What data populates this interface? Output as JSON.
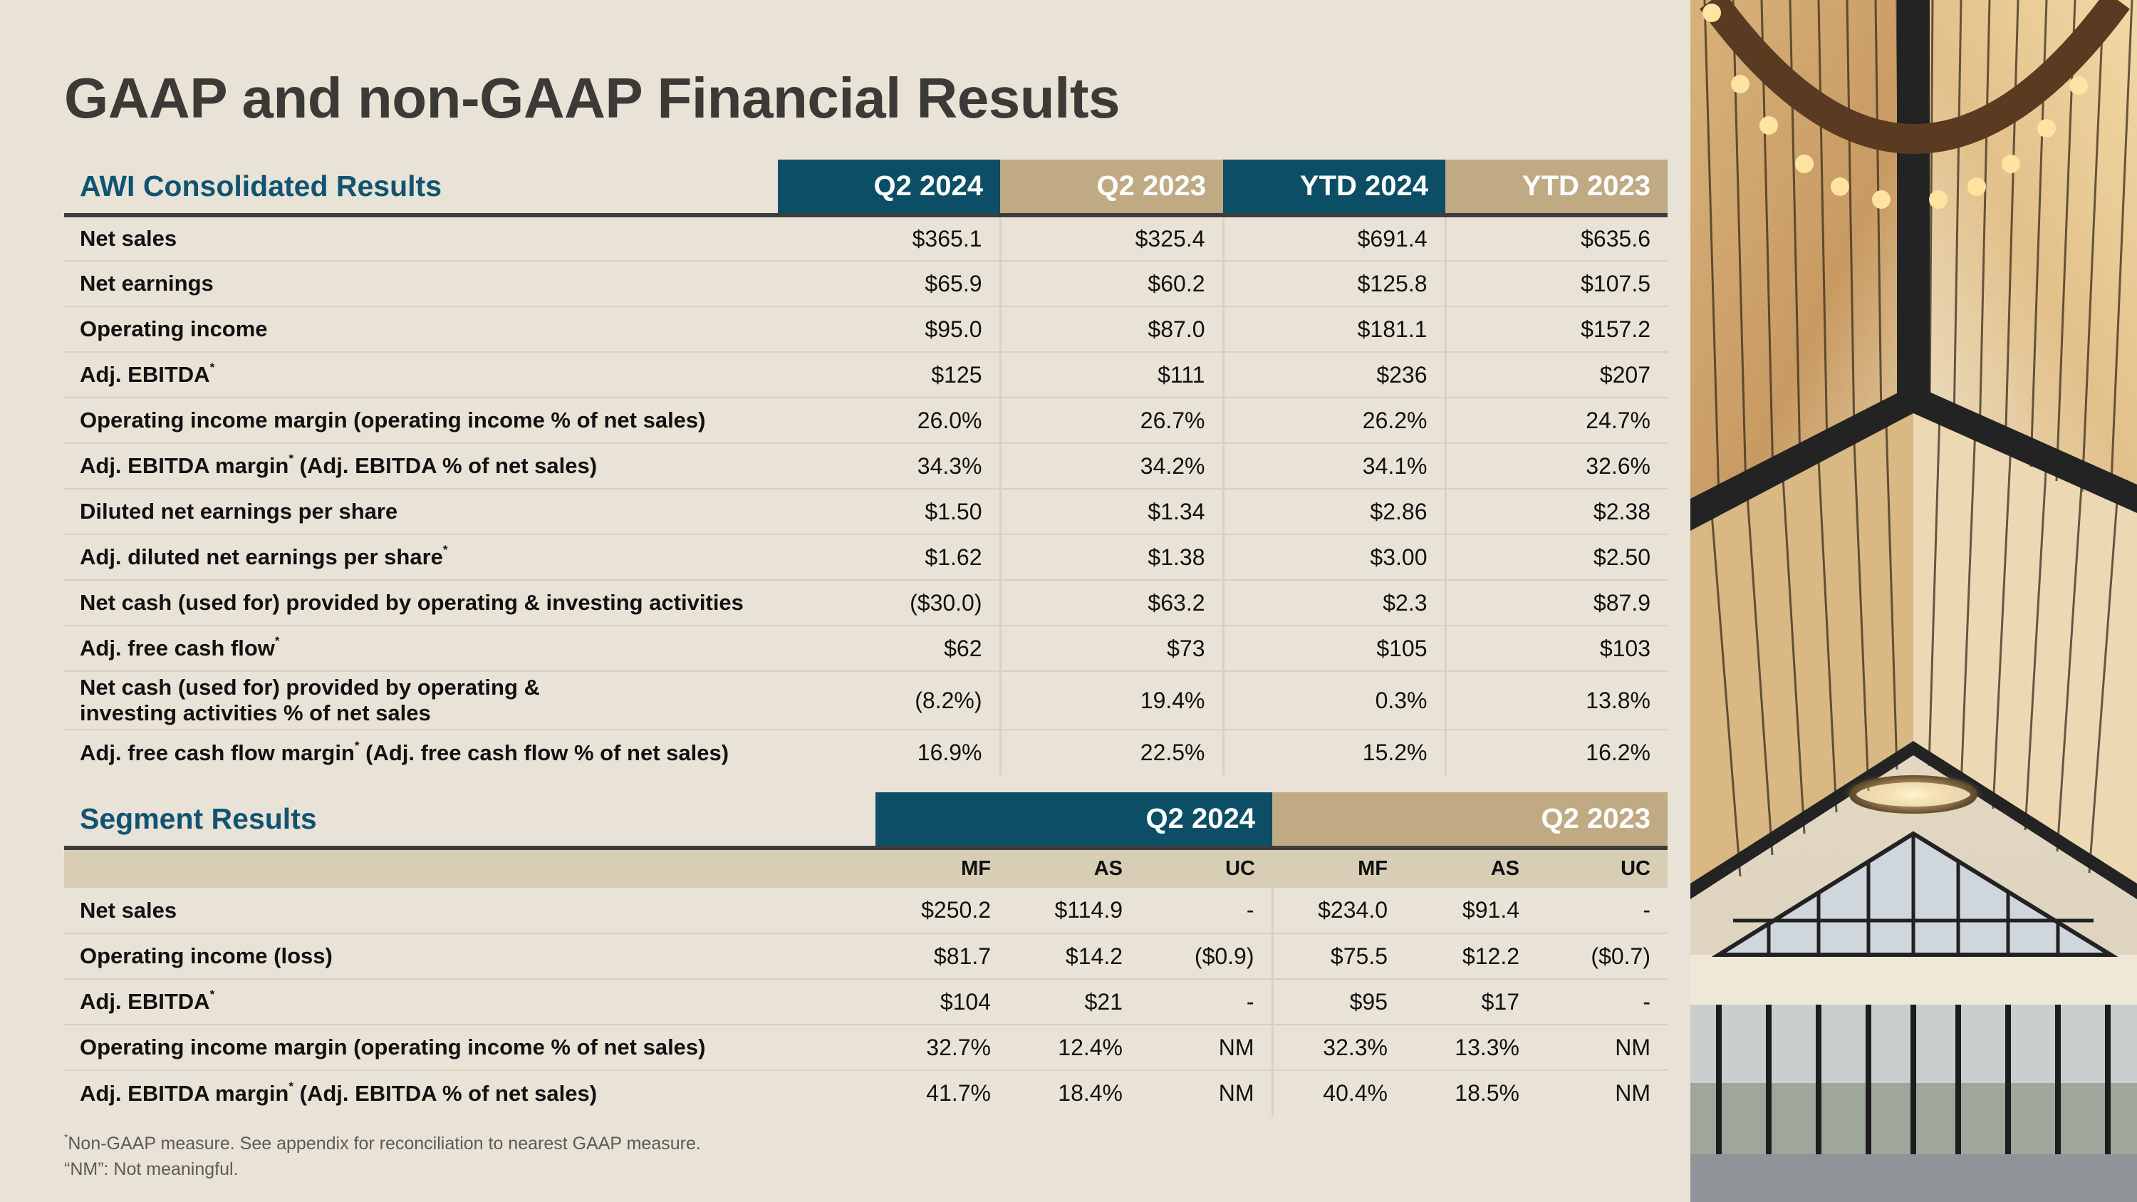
{
  "title": "GAAP and non-GAAP Financial Results",
  "consolidated": {
    "section_title": "AWI Consolidated Results",
    "columns": [
      "Q2 2024",
      "Q2 2023",
      "YTD 2024",
      "YTD 2023"
    ],
    "rows": [
      {
        "label": "Net sales",
        "note": "",
        "suffix": "",
        "values": [
          "$365.1",
          "$325.4",
          "$691.4",
          "$635.6"
        ]
      },
      {
        "label": "Net earnings",
        "note": "",
        "suffix": "",
        "values": [
          "$65.9",
          "$60.2",
          "$125.8",
          "$107.5"
        ]
      },
      {
        "label": "Operating income",
        "note": "",
        "suffix": "",
        "values": [
          "$95.0",
          "$87.0",
          "$181.1",
          "$157.2"
        ]
      },
      {
        "label": "Adj. EBITDA",
        "note": "*",
        "suffix": "",
        "values": [
          "$125",
          "$111",
          "$236",
          "$207"
        ]
      },
      {
        "label": "Operating income margin (operating income % of net sales)",
        "note": "",
        "suffix": "",
        "values": [
          "26.0%",
          "26.7%",
          "26.2%",
          "24.7%"
        ]
      },
      {
        "label": "Adj. EBITDA margin",
        "note": "*",
        "suffix": " (Adj. EBITDA % of net sales)",
        "values": [
          "34.3%",
          "34.2%",
          "34.1%",
          "32.6%"
        ]
      },
      {
        "label": "Diluted net earnings per share",
        "note": "",
        "suffix": "",
        "values": [
          "$1.50",
          "$1.34",
          "$2.86",
          "$2.38"
        ]
      },
      {
        "label": "Adj. diluted net earnings per share",
        "note": "*",
        "suffix": "",
        "values": [
          "$1.62",
          "$1.38",
          "$3.00",
          "$2.50"
        ]
      },
      {
        "label": "Net cash (used for) provided by operating & investing activities",
        "note": "",
        "suffix": "",
        "values": [
          "($30.0)",
          "$63.2",
          "$2.3",
          "$87.9"
        ]
      },
      {
        "label": "Adj. free cash flow",
        "note": "*",
        "suffix": "",
        "values": [
          "$62",
          "$73",
          "$105",
          "$103"
        ]
      },
      {
        "label": "Net cash (used for) provided by operating & investing activities % of net sales",
        "note": "",
        "suffix": "",
        "values": [
          "(8.2%)",
          "19.4%",
          "0.3%",
          "13.8%"
        ]
      },
      {
        "label": "Adj. free cash flow margin",
        "note": "*",
        "suffix": " (Adj. free cash flow % of net sales)",
        "values": [
          "16.9%",
          "22.5%",
          "15.2%",
          "16.2%"
        ]
      }
    ]
  },
  "segment": {
    "section_title": "Segment Results",
    "periods": [
      "Q2 2024",
      "Q2 2023"
    ],
    "subcolumns": [
      "MF",
      "AS",
      "UC",
      "MF",
      "AS",
      "UC"
    ],
    "rows": [
      {
        "label": "Net sales",
        "note": "",
        "suffix": "",
        "values": [
          "$250.2",
          "$114.9",
          "-",
          "$234.0",
          "$91.4",
          "-"
        ]
      },
      {
        "label": "Operating income (loss)",
        "note": "",
        "suffix": "",
        "values": [
          "$81.7",
          "$14.2",
          "($0.9)",
          "$75.5",
          "$12.2",
          "($0.7)"
        ]
      },
      {
        "label": "Adj. EBITDA",
        "note": "*",
        "suffix": "",
        "values": [
          "$104",
          "$21",
          "-",
          "$95",
          "$17",
          "-"
        ]
      },
      {
        "label": "Operating income margin (operating income % of net sales)",
        "note": "",
        "suffix": "",
        "values": [
          "32.7%",
          "12.4%",
          "NM",
          "32.3%",
          "13.3%",
          "NM"
        ]
      },
      {
        "label": "Adj. EBITDA margin",
        "note": "*",
        "suffix": " (Adj. EBITDA % of net sales)",
        "values": [
          "41.7%",
          "18.4%",
          "NM",
          "40.4%",
          "18.5%",
          "NM"
        ]
      }
    ]
  },
  "footnotes": {
    "mark": "*",
    "line1": "Non-GAAP measure. See appendix for reconciliation to nearest GAAP measure.",
    "line2": "“NM”: Not meaningful."
  },
  "colors": {
    "background": "#e9e3d7",
    "navy": "#0c4e66",
    "tan": "#bfaa84",
    "title": "#3b3a37",
    "section": "#0f5472"
  }
}
